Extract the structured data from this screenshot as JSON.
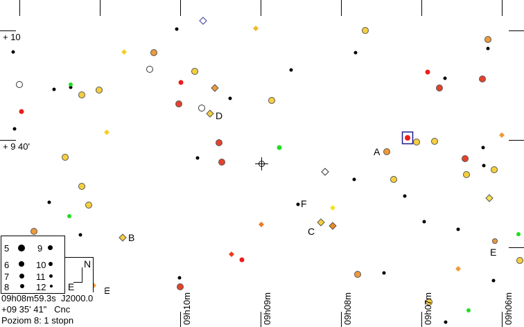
{
  "chart": {
    "dec_labels": [
      "+ 10",
      "+ 9 40'"
    ],
    "ra_labels": [
      "09h10m",
      "09h09m",
      "09h08m",
      "09h07m",
      "09h06m"
    ],
    "ra_label_partial": "m",
    "star_labels": [
      "A",
      "B",
      "C",
      "D",
      "E",
      "F"
    ]
  },
  "legend": {
    "magnitudes": [
      "5",
      "6",
      "7",
      "8",
      "9",
      "10",
      "11",
      "12"
    ]
  },
  "orientation": {
    "north": "N",
    "east": "E"
  },
  "info": {
    "ra": "09h08m59.3s",
    "epoch": "J2000.0",
    "dec": "+09 35' 41\"",
    "constellation": "Cnc",
    "level": "Poziom 8: 1 stopn"
  },
  "colors": {
    "red": "#ee1c1c",
    "orange": "#ec8a26",
    "yellow": "#f3c92a",
    "green": "#22dd22",
    "black": "#000000",
    "white": "#ffffff"
  }
}
